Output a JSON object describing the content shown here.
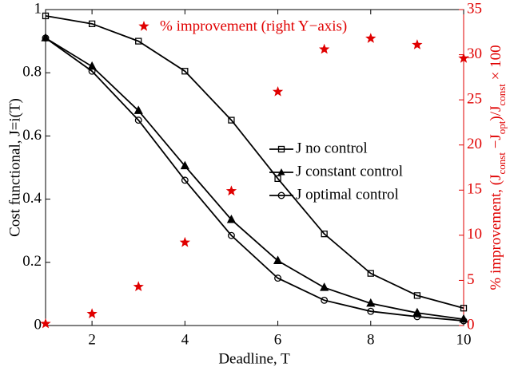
{
  "chart_data": {
    "type": "line",
    "xlabel": "Deadline, T",
    "ylabel": "Cost functional, J=i(T)",
    "y2label_parts": [
      "% improvement, (J",
      "const",
      " −J",
      "opt",
      ")/J",
      "const",
      " × 100"
    ],
    "x": [
      1,
      2,
      3,
      4,
      5,
      6,
      7,
      8,
      9,
      10
    ],
    "xlim": [
      1,
      10
    ],
    "xticks": [
      2,
      4,
      6,
      8,
      10
    ],
    "ylim": [
      0,
      1
    ],
    "yticks": [
      0,
      0.2,
      0.4,
      0.6,
      0.8,
      1
    ],
    "y2lim": [
      0,
      35
    ],
    "y2ticks": [
      0,
      5,
      10,
      15,
      20,
      25,
      30,
      35
    ],
    "series": [
      {
        "name": "J no control",
        "color": "#000000",
        "marker": "square",
        "values": [
          0.98,
          0.955,
          0.9,
          0.805,
          0.65,
          0.465,
          0.29,
          0.165,
          0.095,
          0.055
        ]
      },
      {
        "name": "J constant control",
        "color": "#000000",
        "marker": "triangle",
        "values": [
          0.91,
          0.82,
          0.68,
          0.505,
          0.335,
          0.205,
          0.12,
          0.07,
          0.04,
          0.02
        ]
      },
      {
        "name": "J optimal control",
        "color": "#000000",
        "marker": "circle",
        "values": [
          0.91,
          0.805,
          0.65,
          0.46,
          0.285,
          0.15,
          0.08,
          0.045,
          0.028,
          0.015
        ]
      },
      {
        "name": "% improvement (right Y−axis)",
        "color": "#e00000",
        "marker": "star",
        "axis": "y2",
        "values": [
          0.2,
          1.3,
          4.3,
          9.2,
          14.9,
          25.9,
          30.6,
          31.8,
          31.1,
          29.6
        ]
      }
    ]
  }
}
